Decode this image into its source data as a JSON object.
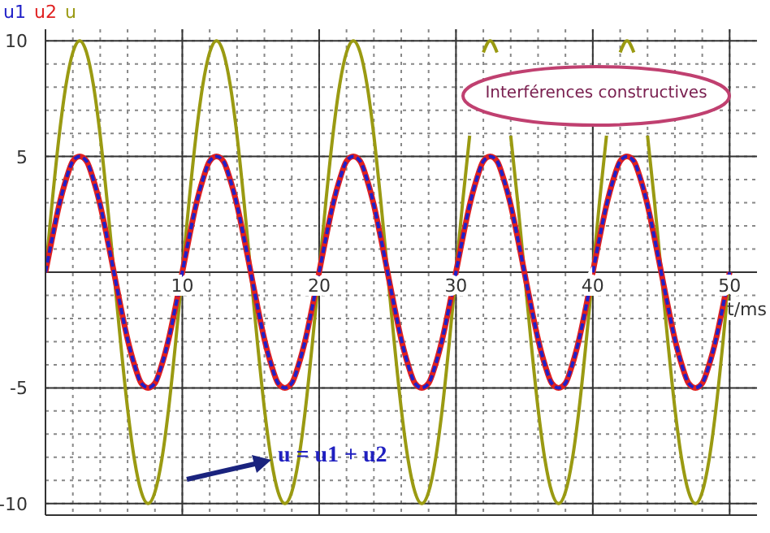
{
  "chart_data": {
    "type": "line",
    "xlabel": "t/ms",
    "x": [
      0,
      0.5,
      1,
      1.5,
      2,
      2.5,
      3,
      3.5,
      4,
      4.5,
      5,
      5.5,
      6,
      6.5,
      7,
      7.5,
      8,
      8.5,
      9,
      9.5,
      10,
      10.5,
      11,
      11.5,
      12,
      12.5,
      13,
      13.5,
      14,
      14.5,
      15,
      15.5,
      16,
      16.5,
      17,
      17.5,
      18,
      18.5,
      19,
      19.5,
      20,
      20.5,
      21,
      21.5,
      22,
      22.5,
      23,
      23.5,
      24,
      24.5,
      25,
      25.5,
      26,
      26.5,
      27,
      27.5,
      28,
      28.5,
      29,
      29.5,
      30,
      30.5,
      31,
      31.5,
      32,
      32.5,
      33,
      33.5,
      34,
      34.5,
      35,
      35.5,
      36,
      36.5,
      37,
      37.5,
      38,
      38.5,
      39,
      39.5,
      40,
      40.5,
      41,
      41.5,
      42,
      42.5,
      43,
      43.5,
      44,
      44.5,
      45,
      45.5,
      46,
      46.5,
      47,
      47.5,
      48,
      48.5,
      49,
      49.5,
      50
    ],
    "series": [
      {
        "name": "u1",
        "color": "#2020c8",
        "line_style": "dashed",
        "values": [
          0,
          1.5,
          2.9,
          4,
          4.8,
          5,
          4.8,
          4,
          2.9,
          1.5,
          0,
          -1.5,
          -2.9,
          -4,
          -4.8,
          -5,
          -4.8,
          -4,
          -2.9,
          -1.5,
          0,
          1.5,
          2.9,
          4,
          4.8,
          5,
          4.8,
          4,
          2.9,
          1.5,
          0,
          -1.5,
          -2.9,
          -4,
          -4.8,
          -5,
          -4.8,
          -4,
          -2.9,
          -1.5,
          0,
          1.5,
          2.9,
          4,
          4.8,
          5,
          4.8,
          4,
          2.9,
          1.5,
          0,
          -1.5,
          -2.9,
          -4,
          -4.8,
          -5,
          -4.8,
          -4,
          -2.9,
          -1.5,
          0,
          1.5,
          2.9,
          4,
          4.8,
          5,
          4.8,
          4,
          2.9,
          1.5,
          0,
          -1.5,
          -2.9,
          -4,
          -4.8,
          -5,
          -4.8,
          -4,
          -2.9,
          -1.5,
          0,
          1.5,
          2.9,
          4,
          4.8,
          5,
          4.8,
          4,
          2.9,
          1.5,
          0,
          -1.5,
          -2.9,
          -4,
          -4.8,
          -5,
          -4.8,
          -4,
          -2.9,
          -1.5,
          0
        ]
      },
      {
        "name": "u2",
        "color": "#e02020",
        "values": [
          0,
          1.5,
          2.9,
          4,
          4.8,
          5,
          4.8,
          4,
          2.9,
          1.5,
          0,
          -1.5,
          -2.9,
          -4,
          -4.8,
          -5,
          -4.8,
          -4,
          -2.9,
          -1.5,
          0,
          1.5,
          2.9,
          4,
          4.8,
          5,
          4.8,
          4,
          2.9,
          1.5,
          0,
          -1.5,
          -2.9,
          -4,
          -4.8,
          -5,
          -4.8,
          -4,
          -2.9,
          -1.5,
          0,
          1.5,
          2.9,
          4,
          4.8,
          5,
          4.8,
          4,
          2.9,
          1.5,
          0,
          -1.5,
          -2.9,
          -4,
          -4.8,
          -5,
          -4.8,
          -4,
          -2.9,
          -1.5,
          0,
          1.5,
          2.9,
          4,
          4.8,
          5,
          4.8,
          4,
          2.9,
          1.5,
          0,
          -1.5,
          -2.9,
          -4,
          -4.8,
          -5,
          -4.8,
          -4,
          -2.9,
          -1.5,
          0,
          1.5,
          2.9,
          4,
          4.8,
          5,
          4.8,
          4,
          2.9,
          1.5,
          0,
          -1.5,
          -2.9,
          -4,
          -4.8,
          -5,
          -4.8,
          -4,
          -2.9,
          -1.5,
          0
        ]
      },
      {
        "name": "u",
        "color": "#9a9a12",
        "values": [
          0,
          3.1,
          5.9,
          8.1,
          9.5,
          10,
          9.5,
          8.1,
          5.9,
          3.1,
          0,
          -3.1,
          -5.9,
          -8.1,
          -9.5,
          -10,
          -9.5,
          -8.1,
          -5.9,
          -3.1,
          0,
          3.1,
          5.9,
          8.1,
          9.5,
          10,
          9.5,
          8.1,
          5.9,
          3.1,
          0,
          -3.1,
          -5.9,
          -8.1,
          -9.5,
          -10,
          -9.5,
          -8.1,
          -5.9,
          -3.1,
          0,
          3.1,
          5.9,
          8.1,
          9.5,
          10,
          9.5,
          8.1,
          5.9,
          3.1,
          0,
          -3.1,
          -5.9,
          -8.1,
          -9.5,
          -10,
          -9.5,
          -8.1,
          -5.9,
          -3.1,
          0,
          3.1,
          5.9,
          null,
          9.5,
          10,
          9.5,
          null,
          5.9,
          3.1,
          0,
          -3.1,
          -5.9,
          -8.1,
          -9.5,
          -10,
          -9.5,
          -8.1,
          -5.9,
          -3.1,
          0,
          3.1,
          5.9,
          null,
          9.5,
          10,
          9.5,
          null,
          5.9,
          3.1,
          0,
          -3.1,
          -5.9,
          -8.1,
          -9.5,
          -10,
          -9.5,
          -8.1,
          -5.9,
          -3.1,
          0
        ]
      }
    ],
    "xlim": [
      0,
      52
    ],
    "ylim": [
      -10.5,
      10.5
    ],
    "xticks": [
      {
        "value": 0,
        "label": null
      },
      {
        "value": 2,
        "label": null
      },
      {
        "value": 4,
        "label": null
      },
      {
        "value": 6,
        "label": null
      },
      {
        "value": 8,
        "label": null
      },
      10,
      {
        "value": 12,
        "label": null
      },
      {
        "value": 14,
        "label": null
      },
      {
        "value": 16,
        "label": null
      },
      {
        "value": 18,
        "label": null
      },
      20,
      {
        "value": 22,
        "label": null
      },
      {
        "value": 24,
        "label": null
      },
      {
        "value": 26,
        "label": null
      },
      {
        "value": 28,
        "label": null
      },
      30,
      {
        "value": 32,
        "label": null
      },
      {
        "value": 34,
        "label": null
      },
      {
        "value": 36,
        "label": null
      },
      {
        "value": 38,
        "label": null
      },
      40,
      {
        "value": 42,
        "label": null
      },
      {
        "value": 44,
        "label": null
      },
      {
        "value": 46,
        "label": null
      },
      {
        "value": 48,
        "label": null
      },
      50
    ],
    "yticks": [
      -10,
      {
        "value": -9,
        "label": null
      },
      {
        "value": -8,
        "label": null
      },
      {
        "value": -7,
        "label": null
      },
      {
        "value": -6,
        "label": null
      },
      -5,
      {
        "value": -4,
        "label": null
      },
      {
        "value": -3,
        "label": null
      },
      {
        "value": -2,
        "label": null
      },
      {
        "value": -1,
        "label": null
      },
      {
        "value": 0,
        "label": null
      },
      {
        "value": 1,
        "label": null
      },
      {
        "value": 2,
        "label": null
      },
      {
        "value": 3,
        "label": null
      },
      {
        "value": 4,
        "label": null
      },
      5,
      {
        "value": 6,
        "label": null
      },
      {
        "value": 7,
        "label": null
      },
      {
        "value": 8,
        "label": null
      },
      {
        "value": 9,
        "label": null
      },
      10
    ],
    "grid": true,
    "legend": "top left",
    "annotations": [
      "Interférences constructives",
      {
        "text": "u = u1 + u2",
        "x": 16.5,
        "y": -8.1
      }
    ]
  }
}
